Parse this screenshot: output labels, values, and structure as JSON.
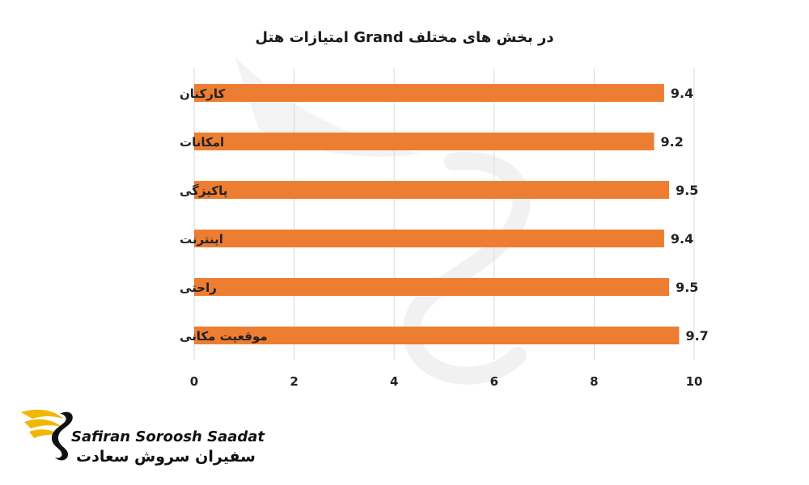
{
  "chart_data": {
    "type": "bar",
    "orientation": "horizontal",
    "title": "امتیازات هتل Grand در بخش های مختلف",
    "categories": [
      "کارکنان",
      "امکانات",
      "پاکیزگی",
      "اینترنت",
      "راحتی",
      "موقعیت مکانی"
    ],
    "series": [
      {
        "values": [
          9.4,
          9.2,
          9.5,
          9.4,
          9.5,
          9.7
        ]
      }
    ],
    "xlim": [
      0,
      10
    ],
    "xticks": [
      "0",
      "2",
      "4",
      "6",
      "8",
      "10"
    ],
    "grid": true,
    "bar_color": "#ED7D31",
    "grid_color": "#D9D9D9"
  },
  "watermark": {
    "latin": "Safiran Soroosh Saadat",
    "persian": "سفیران سروش سعادت"
  },
  "colors": {
    "logo_gold": "#F2B705",
    "logo_dark": "#111111"
  }
}
